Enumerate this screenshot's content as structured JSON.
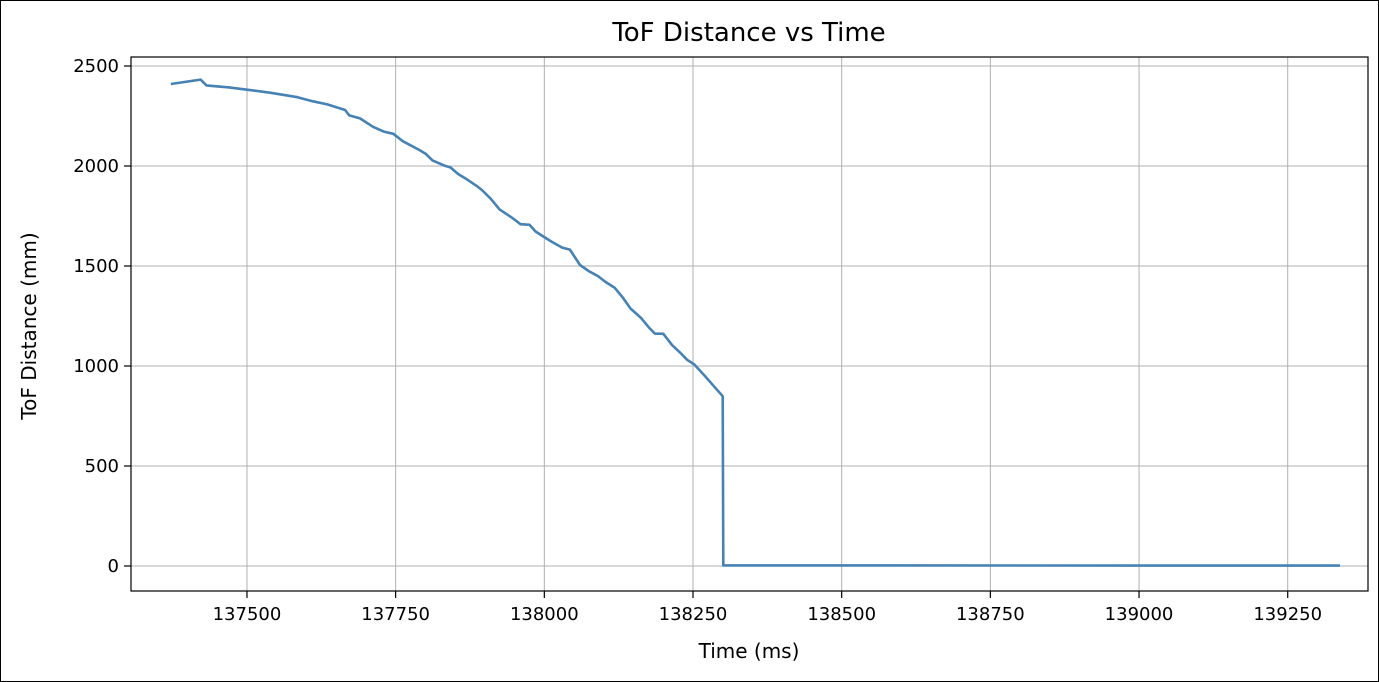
{
  "chart_data": {
    "type": "line",
    "title": "ToF Distance vs Time",
    "xlabel": "Time (ms)",
    "ylabel": "ToF Distance (mm)",
    "xlim": [
      137305,
      139385
    ],
    "ylim": [
      -125,
      2545
    ],
    "xticks": [
      137500,
      137750,
      138000,
      138250,
      138500,
      138750,
      139000,
      139250
    ],
    "xtick_labels": [
      "137500",
      "137750",
      "138000",
      "138250",
      "138500",
      "138750",
      "139000",
      "139250"
    ],
    "yticks": [
      0,
      500,
      1000,
      1500,
      2000,
      2500
    ],
    "ytick_labels": [
      "0",
      "500",
      "1000",
      "1500",
      "2000",
      "2500"
    ],
    "grid": true,
    "line_color": "#4682b4",
    "series": [
      {
        "x": [
          137372,
          137422,
          137432,
          137470,
          137510,
          137540,
          137585,
          137610,
          137635,
          137665,
          137672,
          137690,
          137712,
          137730,
          137746,
          137762,
          137790,
          137800,
          137812,
          137832,
          137842,
          137855,
          137870,
          137885,
          137895,
          137910,
          137925,
          137945,
          137960,
          137975,
          137985,
          137998,
          138012,
          138030,
          138043,
          138060,
          138075,
          138090,
          138103,
          138118,
          138132,
          138145,
          138162,
          138176,
          138186,
          138200,
          138215,
          138230,
          138240,
          138252,
          138270,
          138286,
          138300,
          138301,
          139338
        ],
        "y": [
          2410,
          2432,
          2403,
          2393,
          2378,
          2366,
          2344,
          2324,
          2308,
          2280,
          2253,
          2238,
          2196,
          2172,
          2161,
          2124,
          2080,
          2062,
          2028,
          2002,
          1993,
          1960,
          1933,
          1903,
          1880,
          1836,
          1782,
          1743,
          1709,
          1706,
          1673,
          1648,
          1622,
          1592,
          1582,
          1505,
          1474,
          1450,
          1420,
          1392,
          1342,
          1287,
          1242,
          1192,
          1162,
          1161,
          1104,
          1062,
          1031,
          1008,
          950,
          896,
          849,
          3,
          2
        ]
      }
    ]
  }
}
